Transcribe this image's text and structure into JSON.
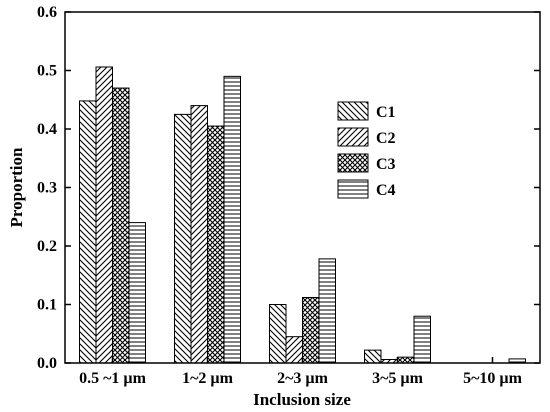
{
  "chart_data": {
    "type": "bar",
    "title": "",
    "xlabel": "Inclusion size",
    "ylabel": "Proportion",
    "ylim": [
      0,
      0.6
    ],
    "yticks": [
      "0.0",
      "0.1",
      "0.2",
      "0.3",
      "0.4",
      "0.5",
      "0.6"
    ],
    "categories": [
      "0.5 ~1 µm",
      "1~2 µm",
      "2~3 µm",
      "3~5 µm",
      "5~10 µm"
    ],
    "series": [
      {
        "name": "C1",
        "values": [
          0.448,
          0.425,
          0.1,
          0.022,
          0.0
        ],
        "pattern": "diag-back"
      },
      {
        "name": "C2",
        "values": [
          0.506,
          0.44,
          0.045,
          0.006,
          0.0
        ],
        "pattern": "diag-fwd"
      },
      {
        "name": "C3",
        "values": [
          0.47,
          0.405,
          0.112,
          0.01,
          0.0
        ],
        "pattern": "crosshatch"
      },
      {
        "name": "C4",
        "values": [
          0.24,
          0.49,
          0.178,
          0.08,
          0.007
        ],
        "pattern": "horizontal"
      }
    ],
    "legend_position": "right-center",
    "grid": false
  }
}
